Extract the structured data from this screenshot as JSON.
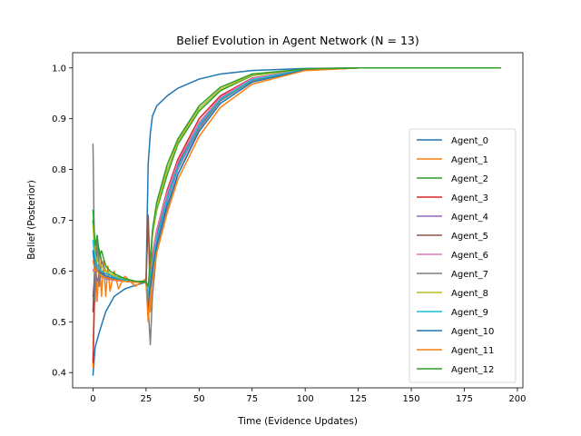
{
  "chart_data": {
    "type": "line",
    "title": "Belief Evolution in Agent Network (N = 13)",
    "xlabel": "Time (Evidence Updates)",
    "ylabel": "Belief (Posterior)",
    "xlim": [
      -9.6,
      202.6
    ],
    "ylim": [
      0.37,
      1.03
    ],
    "xticks": [
      0,
      25,
      50,
      75,
      100,
      125,
      150,
      175,
      200
    ],
    "yticks": [
      0.4,
      0.5,
      0.6,
      0.7,
      0.8,
      0.9,
      1.0
    ],
    "xtick_labels": [
      "0",
      "25",
      "50",
      "75",
      "100",
      "125",
      "150",
      "175",
      "200"
    ],
    "ytick_labels": [
      "0.4",
      "0.5",
      "0.6",
      "0.7",
      "0.8",
      "0.9",
      "1.0"
    ],
    "grid": false,
    "legend_position": "center-right",
    "series": [
      {
        "name": "Agent_0",
        "color": "#1f77b4",
        "x": [
          0,
          1,
          3,
          6,
          10,
          15,
          20,
          25,
          26,
          27,
          28,
          30,
          35,
          40,
          50,
          60,
          75,
          100,
          125,
          150,
          175,
          192
        ],
        "y": [
          0.395,
          0.45,
          0.48,
          0.52,
          0.55,
          0.565,
          0.572,
          0.578,
          0.81,
          0.87,
          0.905,
          0.925,
          0.945,
          0.96,
          0.978,
          0.988,
          0.995,
          0.999,
          1.0,
          1.0,
          1.0,
          1.0
        ]
      },
      {
        "name": "Agent_1",
        "color": "#ff7f0e",
        "x": [
          0,
          1,
          2,
          3,
          4,
          5,
          6,
          7,
          8,
          10,
          12,
          15,
          20,
          25,
          26,
          27,
          28,
          30,
          35,
          40,
          50,
          60,
          75,
          100,
          125,
          150,
          192
        ],
        "y": [
          0.41,
          0.66,
          0.54,
          0.63,
          0.55,
          0.62,
          0.55,
          0.61,
          0.56,
          0.6,
          0.565,
          0.59,
          0.57,
          0.585,
          0.7,
          0.52,
          0.6,
          0.68,
          0.75,
          0.81,
          0.89,
          0.94,
          0.975,
          0.995,
          1.0,
          1.0,
          1.0
        ]
      },
      {
        "name": "Agent_2",
        "color": "#2ca02c",
        "x": [
          0,
          1,
          2,
          4,
          6,
          10,
          15,
          20,
          25,
          26,
          27,
          28,
          30,
          35,
          40,
          50,
          60,
          75,
          100,
          125,
          150,
          192
        ],
        "y": [
          0.7,
          0.62,
          0.66,
          0.62,
          0.6,
          0.59,
          0.585,
          0.58,
          0.58,
          0.55,
          0.6,
          0.67,
          0.72,
          0.79,
          0.85,
          0.915,
          0.955,
          0.985,
          0.998,
          1.0,
          1.0,
          1.0
        ]
      },
      {
        "name": "Agent_3",
        "color": "#d62728",
        "x": [
          0,
          1,
          2,
          4,
          6,
          10,
          15,
          20,
          25,
          26,
          27,
          28,
          30,
          35,
          40,
          50,
          60,
          75,
          100,
          125,
          150,
          192
        ],
        "y": [
          0.42,
          0.6,
          0.58,
          0.6,
          0.59,
          0.585,
          0.58,
          0.578,
          0.578,
          0.55,
          0.58,
          0.63,
          0.68,
          0.76,
          0.82,
          0.9,
          0.945,
          0.98,
          0.997,
          1.0,
          1.0,
          1.0
        ]
      },
      {
        "name": "Agent_4",
        "color": "#9467bd",
        "x": [
          0,
          1,
          2,
          4,
          6,
          10,
          15,
          20,
          25,
          26,
          27,
          28,
          30,
          35,
          40,
          50,
          60,
          75,
          100,
          125,
          150,
          192
        ],
        "y": [
          0.55,
          0.6,
          0.58,
          0.59,
          0.585,
          0.582,
          0.58,
          0.578,
          0.578,
          0.52,
          0.56,
          0.6,
          0.66,
          0.74,
          0.8,
          0.885,
          0.935,
          0.975,
          0.996,
          1.0,
          1.0,
          1.0
        ]
      },
      {
        "name": "Agent_5",
        "color": "#8c564b",
        "x": [
          0,
          1,
          2,
          4,
          6,
          10,
          15,
          20,
          25,
          26,
          27,
          28,
          30,
          35,
          40,
          50,
          60,
          75,
          100,
          125,
          150,
          192
        ],
        "y": [
          0.52,
          0.63,
          0.6,
          0.6,
          0.59,
          0.585,
          0.58,
          0.578,
          0.578,
          0.71,
          0.58,
          0.6,
          0.67,
          0.75,
          0.81,
          0.89,
          0.94,
          0.978,
          0.997,
          1.0,
          1.0,
          1.0
        ]
      },
      {
        "name": "Agent_6",
        "color": "#e377c2",
        "x": [
          0,
          1,
          2,
          4,
          6,
          10,
          15,
          20,
          25,
          26,
          27,
          28,
          30,
          35,
          40,
          50,
          60,
          75,
          100,
          125,
          150,
          192
        ],
        "y": [
          0.6,
          0.61,
          0.6,
          0.595,
          0.59,
          0.585,
          0.58,
          0.578,
          0.578,
          0.56,
          0.58,
          0.62,
          0.68,
          0.755,
          0.815,
          0.893,
          0.942,
          0.979,
          0.997,
          1.0,
          1.0,
          1.0
        ]
      },
      {
        "name": "Agent_7",
        "color": "#7f7f7f",
        "x": [
          0,
          1,
          2,
          3,
          4,
          6,
          10,
          15,
          20,
          25,
          26,
          27,
          28,
          30,
          35,
          40,
          50,
          60,
          75,
          100,
          125,
          150,
          192
        ],
        "y": [
          0.85,
          0.54,
          0.67,
          0.57,
          0.62,
          0.6,
          0.585,
          0.58,
          0.578,
          0.578,
          0.53,
          0.455,
          0.55,
          0.64,
          0.72,
          0.79,
          0.88,
          0.935,
          0.975,
          0.996,
          1.0,
          1.0,
          1.0
        ]
      },
      {
        "name": "Agent_8",
        "color": "#bcbd22",
        "x": [
          0,
          1,
          2,
          4,
          6,
          10,
          15,
          20,
          25,
          26,
          27,
          28,
          30,
          35,
          40,
          50,
          60,
          75,
          100,
          125,
          150,
          192
        ],
        "y": [
          0.69,
          0.63,
          0.62,
          0.61,
          0.6,
          0.59,
          0.583,
          0.58,
          0.578,
          0.57,
          0.61,
          0.67,
          0.725,
          0.8,
          0.855,
          0.92,
          0.958,
          0.986,
          0.998,
          1.0,
          1.0,
          1.0
        ]
      },
      {
        "name": "Agent_9",
        "color": "#17becf",
        "x": [
          0,
          1,
          2,
          4,
          6,
          10,
          15,
          20,
          25,
          26,
          27,
          28,
          30,
          35,
          40,
          50,
          60,
          75,
          100,
          125,
          150,
          192
        ],
        "y": [
          0.66,
          0.62,
          0.61,
          0.6,
          0.595,
          0.588,
          0.582,
          0.579,
          0.578,
          0.55,
          0.58,
          0.61,
          0.665,
          0.745,
          0.805,
          0.888,
          0.938,
          0.977,
          0.997,
          1.0,
          1.0,
          1.0
        ]
      },
      {
        "name": "Agent_10",
        "color": "#1f77b4",
        "x": [
          0,
          1,
          2,
          4,
          6,
          10,
          15,
          20,
          25,
          26,
          27,
          28,
          30,
          35,
          40,
          50,
          60,
          75,
          100,
          125,
          150,
          192
        ],
        "y": [
          0.64,
          0.6,
          0.6,
          0.595,
          0.59,
          0.585,
          0.58,
          0.578,
          0.578,
          0.53,
          0.57,
          0.6,
          0.65,
          0.73,
          0.79,
          0.875,
          0.93,
          0.972,
          0.996,
          1.0,
          1.0,
          1.0
        ]
      },
      {
        "name": "Agent_11",
        "color": "#ff7f0e",
        "x": [
          0,
          1,
          2,
          4,
          6,
          10,
          15,
          20,
          25,
          26,
          27,
          28,
          30,
          35,
          40,
          50,
          60,
          75,
          100,
          125,
          150,
          192
        ],
        "y": [
          0.62,
          0.6,
          0.6,
          0.59,
          0.587,
          0.583,
          0.58,
          0.578,
          0.578,
          0.5,
          0.55,
          0.58,
          0.635,
          0.715,
          0.78,
          0.865,
          0.922,
          0.968,
          0.995,
          1.0,
          1.0,
          1.0
        ]
      },
      {
        "name": "Agent_12",
        "color": "#2ca02c",
        "x": [
          0,
          1,
          2,
          3,
          4,
          6,
          8,
          10,
          15,
          20,
          25,
          26,
          27,
          28,
          30,
          35,
          40,
          50,
          60,
          75,
          100,
          125,
          150,
          192
        ],
        "y": [
          0.72,
          0.65,
          0.67,
          0.63,
          0.64,
          0.61,
          0.6,
          0.595,
          0.585,
          0.58,
          0.578,
          0.57,
          0.62,
          0.68,
          0.735,
          0.81,
          0.86,
          0.925,
          0.962,
          0.988,
          0.998,
          1.0,
          1.0,
          1.0
        ]
      }
    ]
  }
}
